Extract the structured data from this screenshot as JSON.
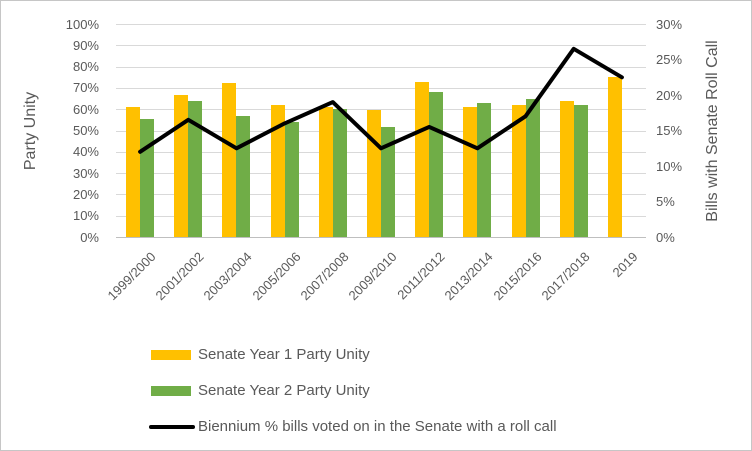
{
  "chart_data": {
    "type": "bar",
    "subtype": "clustered-bars-with-line-overlay",
    "categories": [
      "1999/2000",
      "2001/2002",
      "2003/2004",
      "2005/2006",
      "2007/2008",
      "2009/2010",
      "2011/2012",
      "2013/2014",
      "2015/2016",
      "2017/2018",
      "2019"
    ],
    "series": [
      {
        "name": "Senate Year 1 Party Unity",
        "type": "bar",
        "axis": "left",
        "color": "#FFC000",
        "values": [
          61,
          66.5,
          72.5,
          62,
          61,
          59.5,
          73,
          61,
          62,
          64,
          75
        ]
      },
      {
        "name": "Senate Year 2 Party Unity",
        "type": "bar",
        "axis": "left",
        "color": "#70AD47",
        "values": [
          55.5,
          64,
          57,
          54,
          60,
          51.5,
          68,
          63,
          65,
          62,
          null
        ]
      },
      {
        "name": "Biennium % bills voted on in the Senate with a roll call",
        "type": "line",
        "axis": "right",
        "color": "#000000",
        "values": [
          12,
          16.5,
          12.5,
          16,
          19,
          12.5,
          15.5,
          12.5,
          17,
          26.5,
          22.5
        ]
      }
    ],
    "left_axis": {
      "title": "Party Unity",
      "min": 0,
      "max": 100,
      "ticks": [
        "100%",
        "90%",
        "80%",
        "70%",
        "60%",
        "50%",
        "40%",
        "30%",
        "20%",
        "10%",
        "0%"
      ]
    },
    "right_axis": {
      "title": "Bills with Senate Roll Call",
      "min": 0,
      "max": 30,
      "ticks": [
        "30%",
        "25%",
        "20%",
        "15%",
        "10%",
        "5%",
        "0%"
      ]
    },
    "grid": true,
    "legend_position": "bottom-left"
  },
  "colors": {
    "bar_year1": "#FFC000",
    "bar_year2": "#70AD47",
    "line": "#000000",
    "gridline": "#D9D9D9",
    "axis_line": "#BFBFBF",
    "text": "#595959",
    "border": "#C6C6C6"
  }
}
